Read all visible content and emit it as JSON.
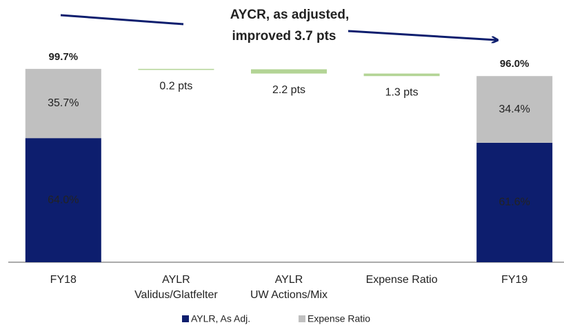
{
  "chart_data": {
    "type": "waterfall",
    "annotation": [
      "AYCR, as adjusted,",
      "improved 3.7 pts"
    ],
    "categories": [
      [
        "FY18"
      ],
      [
        "AYLR",
        "Validus/Glatfelter"
      ],
      [
        "AYLR",
        "UW Actions/Mix"
      ],
      [
        "Expense Ratio"
      ],
      [
        "FY19"
      ]
    ],
    "series": [
      {
        "name": "AYLR, As Adj.",
        "color": "#0d1e6e",
        "values": [
          64.0,
          null,
          null,
          null,
          61.6
        ],
        "value_labels": [
          "64.0%",
          null,
          null,
          null,
          "61.6%"
        ]
      },
      {
        "name": "Expense Ratio",
        "color": "#c0c0c0",
        "values": [
          35.7,
          null,
          null,
          null,
          34.4
        ],
        "value_labels": [
          "35.7%",
          null,
          null,
          null,
          "34.4%"
        ]
      }
    ],
    "totals": {
      "values": [
        99.7,
        null,
        null,
        null,
        96.0
      ],
      "value_labels": [
        "99.7%",
        null,
        null,
        null,
        "96.0%"
      ]
    },
    "changes": {
      "color": "#b3d495",
      "values": [
        null,
        0.2,
        2.2,
        1.3,
        null
      ],
      "value_labels": [
        null,
        "0.2 pts",
        "2.2 pts",
        "1.3 pts",
        null
      ]
    }
  }
}
